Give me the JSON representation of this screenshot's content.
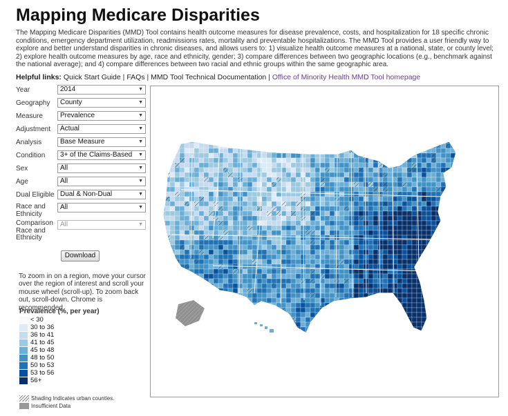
{
  "title": "Mapping Medicare Disparities",
  "intro": "The Mapping Medicare Disparities (MMD) Tool contains health outcome measures for disease prevalence, costs, and hospitalization for 18 specific chronic conditions, emergency department utilization, readmissions rates, mortality and preventable hospitalizations. The MMD Tool provides a user friendly way to explore and better understand disparities in chronic diseases, and allows users to: 1) visualize health outcome measures at a national, state, or county level; 2) explore health outcome measures by age, race and ethnicity, gender; 3) compare differences between two geographic locations (e.g., benchmark against the national average); and 4) compare differences between two racial and ethnic groups within the same geographic area.",
  "links": {
    "label": "Helpful links:",
    "quick_start": "Quick Start Guide",
    "faqs": "FAQs",
    "tech_doc": "MMD Tool Technical Documentation",
    "omh": "Office of Minority Health MMD Tool homepage",
    "sep": "|"
  },
  "controls": {
    "year": {
      "label": "Year",
      "value": "2014"
    },
    "geography": {
      "label": "Geography",
      "value": "County"
    },
    "measure": {
      "label": "Measure",
      "value": "Prevalence"
    },
    "adjustment": {
      "label": "Adjustment",
      "value": "Actual"
    },
    "analysis": {
      "label": "Analysis",
      "value": "Base Measure"
    },
    "condition": {
      "label": "Condition",
      "value": "3+ of the Claims-Based"
    },
    "sex": {
      "label": "Sex",
      "value": "All"
    },
    "age": {
      "label": "Age",
      "value": "All"
    },
    "dual": {
      "label": "Dual Eligible",
      "value": "Dual & Non-Dual"
    },
    "race": {
      "label": "Race and Ethnicity",
      "value": "All"
    },
    "comparison": {
      "label": "Comparison Race and Ethnicity",
      "value": "All"
    }
  },
  "download_label": "Download",
  "zoom_tip": "To zoom in on a region, move your cursor over the region of interest and scroll your mouse wheel (scroll-up). To zoom back out, scroll-down. Chrome is recommended.",
  "legend": {
    "title": "Prevalence (%, per year)",
    "items": [
      {
        "label": "< 30",
        "color": "#f7fbff"
      },
      {
        "label": "30 to 36",
        "color": "#deebf7"
      },
      {
        "label": "36 to 41",
        "color": "#c6dbef"
      },
      {
        "label": "41 to 45",
        "color": "#9ecae1"
      },
      {
        "label": "45 to 48",
        "color": "#6baed6"
      },
      {
        "label": "48 to 50",
        "color": "#4292c6"
      },
      {
        "label": "50 to 53",
        "color": "#2171b5"
      },
      {
        "label": "53 to 56",
        "color": "#08519c"
      },
      {
        "label": "56+",
        "color": "#08306b"
      }
    ],
    "urban_note": "Shading Indicates urban counties.",
    "insufficient_note": "Insufficient Data",
    "insufficient_color": "#999999"
  }
}
